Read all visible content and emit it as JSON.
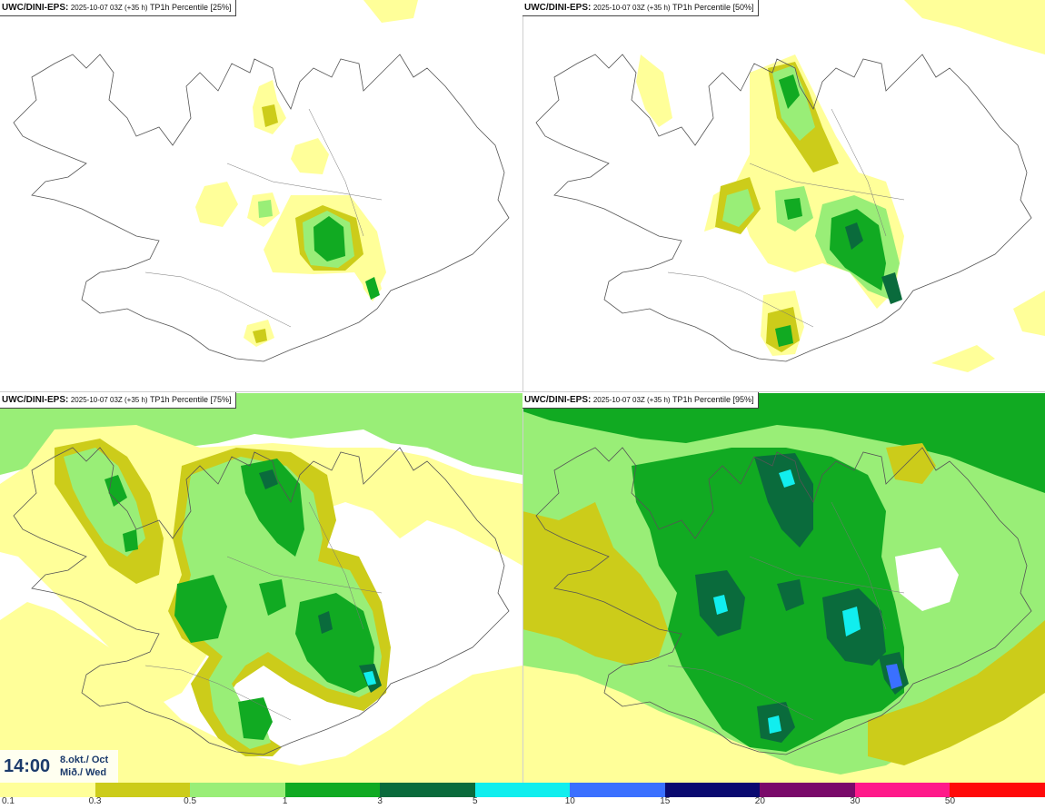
{
  "panels": [
    {
      "model": "UWC/DINI-EPS:",
      "run": "2025-10-07 03Z (+35 h)",
      "product": "TP1h Percentile [25%]",
      "percentile": 25
    },
    {
      "model": "UWC/DINI-EPS:",
      "run": "2025-10-07 03Z (+35 h)",
      "product": "TP1h Percentile [50%]",
      "percentile": 50
    },
    {
      "model": "UWC/DINI-EPS:",
      "run": "2025-10-07 03Z (+35 h)",
      "product": "TP1h Percentile [75%]",
      "percentile": 75
    },
    {
      "model": "UWC/DINI-EPS:",
      "run": "2025-10-07 03Z (+35 h)",
      "product": "TP1h Percentile [95%]",
      "percentile": 95
    }
  ],
  "valid_time": {
    "time": "14:00",
    "date": "8.okt./ Oct",
    "day": "Mið./ Wed"
  },
  "colorbar": {
    "labels": [
      "0.1",
      "0.3",
      "0.5",
      "1",
      "3",
      "5",
      "10",
      "15",
      "20",
      "30",
      "50"
    ],
    "colors": [
      "#ffff99",
      "#cccc1a",
      "#99ee77",
      "#11aa22",
      "#0a6b3c",
      "#11eeee",
      "#3a70ff",
      "#0a0a70",
      "#7a0a6a",
      "#ff1a8a",
      "#ff0a0a"
    ]
  },
  "field_colors": {
    "light_yellow": "#ffff99",
    "olive": "#cccc1a",
    "light_green": "#99ee77",
    "green": "#11aa22",
    "dark_green": "#0a6b3c",
    "cyan": "#11eeee",
    "blue": "#3a70ff"
  }
}
